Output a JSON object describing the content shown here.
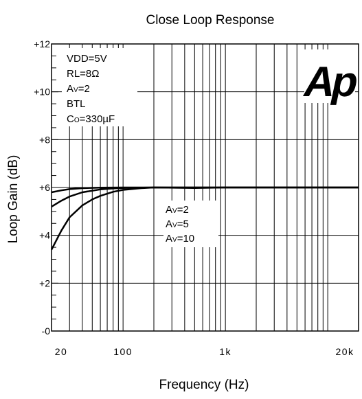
{
  "chart_data": {
    "type": "line",
    "title": "Close Loop Response",
    "xlabel": "Frequency (Hz)",
    "ylabel": "Loop Gain (dB)",
    "x_scale": "log",
    "xlim": [
      20,
      20000
    ],
    "ylim": [
      0,
      12
    ],
    "grid": true,
    "x_tick_labels": [
      {
        "value": 20,
        "label": "20"
      },
      {
        "value": 100,
        "label": "100"
      },
      {
        "value": 1000,
        "label": "1k"
      },
      {
        "value": 20000,
        "label": "20k"
      }
    ],
    "y_tick_labels": [
      {
        "value": 0,
        "label": "-0"
      },
      {
        "value": 2,
        "label": "+2"
      },
      {
        "value": 4,
        "label": "+4"
      },
      {
        "value": 6,
        "label": "+6"
      },
      {
        "value": 8,
        "label": "+8"
      },
      {
        "value": 10,
        "label": "+10"
      },
      {
        "value": 12,
        "label": "+12"
      }
    ],
    "conditions": {
      "vdd": "VDD=5V",
      "rl": "RL=8Ω",
      "av_main": "A",
      "av_sub": "V",
      "av_val": "=2",
      "btl": "BTL",
      "co_main": "C",
      "co_sub": "O",
      "co_val": "=330µF"
    },
    "series_labels": [
      {
        "main": "A",
        "sub": "V",
        "value": "=2"
      },
      {
        "main": "A",
        "sub": "V",
        "value": "=5"
      },
      {
        "main": "A",
        "sub": "V",
        "value": "=10"
      }
    ],
    "logo": "Ap",
    "series": [
      {
        "x": [
          20,
          25,
          30,
          40,
          60,
          100,
          200,
          500,
          1000,
          5000,
          20000
        ],
        "values": [
          5.8,
          5.88,
          5.93,
          5.97,
          5.99,
          6.0,
          6.0,
          6.0,
          6.0,
          6.0,
          6.0
        ]
      },
      {
        "x": [
          20,
          25,
          30,
          40,
          60,
          80,
          100,
          200,
          500,
          1000,
          5000,
          20000
        ],
        "values": [
          5.2,
          5.45,
          5.62,
          5.8,
          5.92,
          5.96,
          5.98,
          6.0,
          6.0,
          6.0,
          6.0,
          6.0
        ]
      },
      {
        "x": [
          20,
          25,
          30,
          40,
          50,
          60,
          80,
          100,
          150,
          200,
          500,
          1000,
          5000,
          20000
        ],
        "values": [
          3.4,
          4.2,
          4.75,
          5.25,
          5.5,
          5.65,
          5.82,
          5.9,
          5.97,
          6.0,
          5.98,
          6.0,
          6.0,
          6.0
        ]
      }
    ]
  }
}
